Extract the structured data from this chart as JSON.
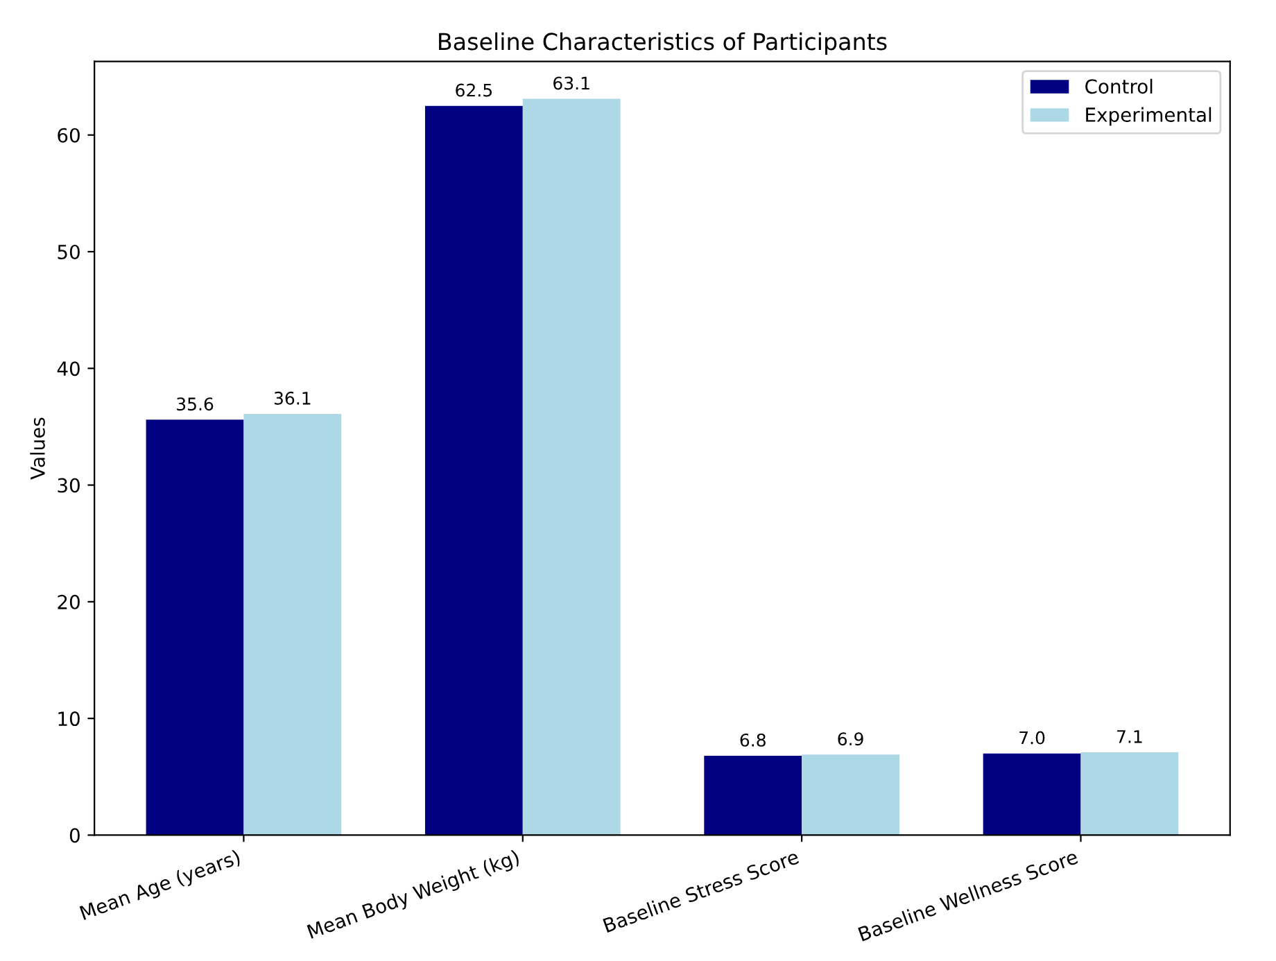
{
  "chart_data": {
    "type": "bar",
    "title": "Baseline Characteristics of Participants",
    "ylabel": "Values",
    "categories": [
      "Mean Age (years)",
      "Mean Body Weight (kg)",
      "Baseline Stress Score",
      "Baseline Wellness Score"
    ],
    "series": [
      {
        "name": "Control",
        "color": "#000080",
        "values": [
          35.6,
          62.5,
          6.8,
          7.0
        ],
        "value_labels": [
          "35.6",
          "62.5",
          "6.8",
          "7.0"
        ]
      },
      {
        "name": "Experimental",
        "color": "#add8e6",
        "values": [
          36.1,
          63.1,
          6.9,
          7.1
        ],
        "value_labels": [
          "36.1",
          "63.1",
          "6.9",
          "7.1"
        ]
      }
    ],
    "ylim": [
      0,
      66.3
    ],
    "yticks": [
      0,
      10,
      20,
      30,
      40,
      50,
      60
    ],
    "legend": "top right",
    "grid": false
  }
}
